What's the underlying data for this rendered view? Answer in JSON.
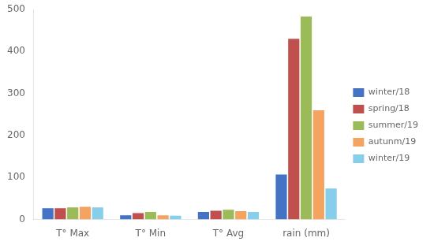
{
  "chart_data": {
    "type": "bar",
    "categories": [
      "T° Max",
      "T° Min",
      "T° Avg",
      "rain (mm)"
    ],
    "series": [
      {
        "name": "winter/18",
        "color": "#4472C4",
        "values": [
          27,
          10,
          18,
          107
        ]
      },
      {
        "name": "spring/18",
        "color": "#C0504D",
        "values": [
          27,
          15,
          21,
          430
        ]
      },
      {
        "name": "summer/19",
        "color": "#9BBB59",
        "values": [
          29,
          18,
          23,
          483
        ]
      },
      {
        "name": "autunm/19",
        "color": "#F4A460",
        "values": [
          30,
          10,
          20,
          260
        ]
      },
      {
        "name": "winter/19",
        "color": "#87CEEB",
        "values": [
          29,
          9,
          18,
          74
        ]
      }
    ],
    "ylim": [
      0,
      500
    ],
    "yticks": [
      0,
      100,
      200,
      300,
      400,
      500
    ],
    "grid": false,
    "legend": "right"
  }
}
